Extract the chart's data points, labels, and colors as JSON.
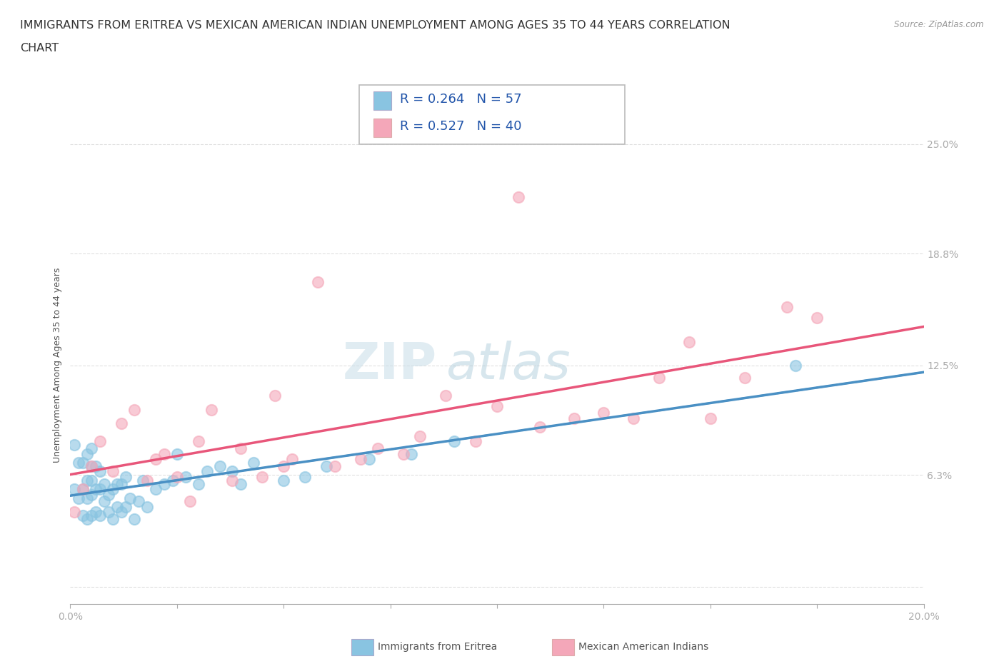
{
  "title_line1": "IMMIGRANTS FROM ERITREA VS MEXICAN AMERICAN INDIAN UNEMPLOYMENT AMONG AGES 35 TO 44 YEARS CORRELATION",
  "title_line2": "CHART",
  "source_text": "Source: ZipAtlas.com",
  "ylabel": "Unemployment Among Ages 35 to 44 years",
  "xlim": [
    0.0,
    0.2
  ],
  "ylim": [
    -0.01,
    0.26
  ],
  "xtick_positions": [
    0.0,
    0.025,
    0.05,
    0.075,
    0.1,
    0.125,
    0.15,
    0.175,
    0.2
  ],
  "xticklabels_show": {
    "0.0": "0.0%",
    "0.20": "20.0%"
  },
  "ytick_positions": [
    0.0,
    0.063,
    0.125,
    0.188,
    0.25
  ],
  "ytick_labels": [
    "",
    "6.3%",
    "12.5%",
    "18.8%",
    "25.0%"
  ],
  "legend_r1": "R = 0.264",
  "legend_n1": "N = 57",
  "legend_r2": "R = 0.527",
  "legend_n2": "N = 40",
  "color_blue": "#89c4e1",
  "color_pink": "#f4a7b9",
  "color_blue_line": "#4a90c4",
  "color_pink_line": "#e8567a",
  "watermark_zip": "ZIP",
  "watermark_atlas": "atlas",
  "grid_color": "#e0e0e0",
  "background_color": "#ffffff",
  "title_fontsize": 11.5,
  "axis_label_fontsize": 9,
  "tick_fontsize": 10,
  "legend_fontsize": 13,
  "series1_x": [
    0.001,
    0.001,
    0.002,
    0.002,
    0.003,
    0.003,
    0.003,
    0.004,
    0.004,
    0.004,
    0.004,
    0.005,
    0.005,
    0.005,
    0.005,
    0.005,
    0.006,
    0.006,
    0.006,
    0.007,
    0.007,
    0.007,
    0.008,
    0.008,
    0.009,
    0.009,
    0.01,
    0.01,
    0.011,
    0.011,
    0.012,
    0.012,
    0.013,
    0.013,
    0.014,
    0.015,
    0.016,
    0.017,
    0.018,
    0.02,
    0.022,
    0.024,
    0.025,
    0.027,
    0.03,
    0.032,
    0.035,
    0.038,
    0.04,
    0.043,
    0.05,
    0.055,
    0.06,
    0.07,
    0.08,
    0.09,
    0.17
  ],
  "series1_y": [
    0.055,
    0.08,
    0.05,
    0.07,
    0.04,
    0.055,
    0.07,
    0.038,
    0.05,
    0.06,
    0.075,
    0.04,
    0.052,
    0.06,
    0.068,
    0.078,
    0.042,
    0.055,
    0.068,
    0.04,
    0.055,
    0.065,
    0.048,
    0.058,
    0.042,
    0.052,
    0.038,
    0.055,
    0.045,
    0.058,
    0.042,
    0.058,
    0.045,
    0.062,
    0.05,
    0.038,
    0.048,
    0.06,
    0.045,
    0.055,
    0.058,
    0.06,
    0.075,
    0.062,
    0.058,
    0.065,
    0.068,
    0.065,
    0.058,
    0.07,
    0.06,
    0.062,
    0.068,
    0.072,
    0.075,
    0.082,
    0.125
  ],
  "series2_x": [
    0.001,
    0.003,
    0.005,
    0.007,
    0.01,
    0.012,
    0.015,
    0.018,
    0.02,
    0.022,
    0.025,
    0.028,
    0.03,
    0.033,
    0.038,
    0.04,
    0.045,
    0.048,
    0.05,
    0.052,
    0.058,
    0.062,
    0.068,
    0.072,
    0.078,
    0.082,
    0.088,
    0.095,
    0.1,
    0.105,
    0.11,
    0.118,
    0.125,
    0.132,
    0.138,
    0.145,
    0.15,
    0.158,
    0.168,
    0.175
  ],
  "series2_y": [
    0.042,
    0.055,
    0.068,
    0.082,
    0.065,
    0.092,
    0.1,
    0.06,
    0.072,
    0.075,
    0.062,
    0.048,
    0.082,
    0.1,
    0.06,
    0.078,
    0.062,
    0.108,
    0.068,
    0.072,
    0.172,
    0.068,
    0.072,
    0.078,
    0.075,
    0.085,
    0.108,
    0.082,
    0.102,
    0.22,
    0.09,
    0.095,
    0.098,
    0.095,
    0.118,
    0.138,
    0.095,
    0.118,
    0.158,
    0.152
  ]
}
